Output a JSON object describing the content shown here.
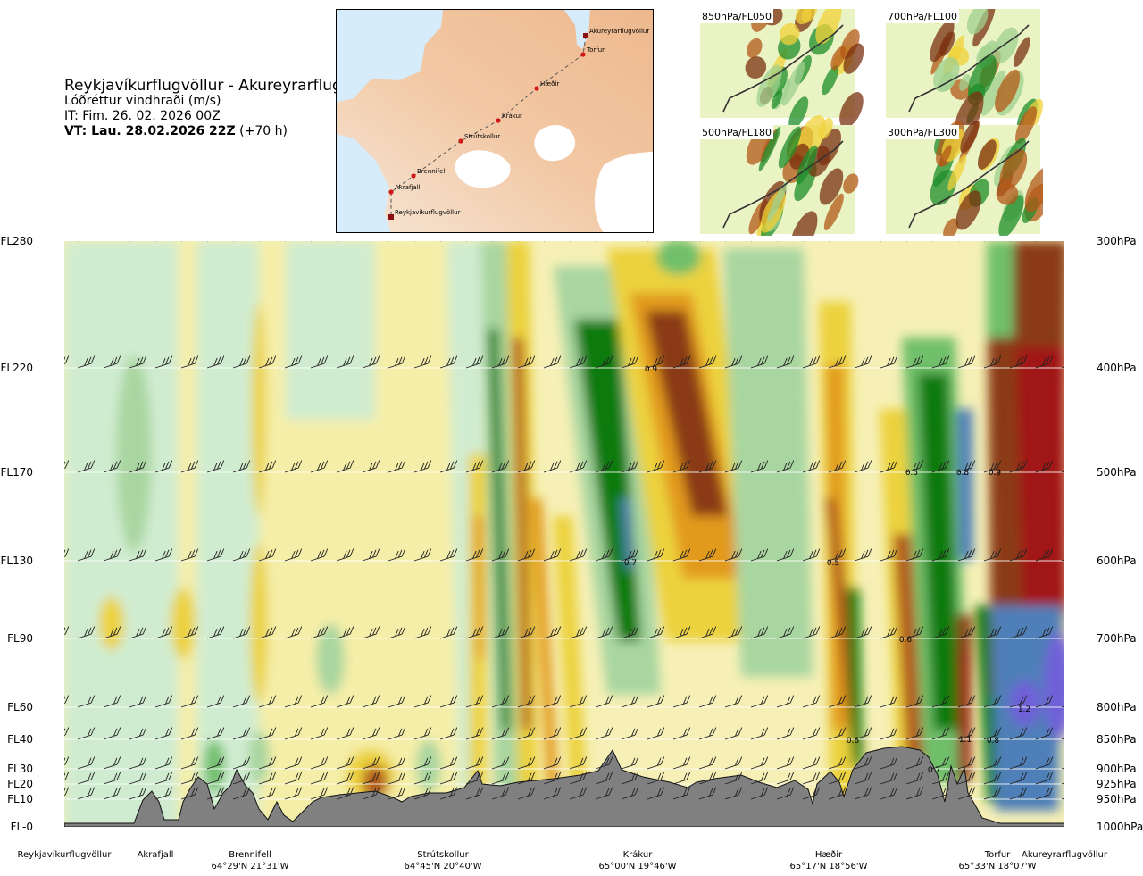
{
  "header": {
    "route_title": "Reykjavíkurflugvöllur - Akureyrarflugvöllur",
    "variable": "Lóðréttur vindhraði (m/s)",
    "init_time": "IT: Fim. 26. 02. 2026 00Z",
    "valid_prefix": "VT: Lau. 28.02.2026 22Z",
    "valid_offset": "(+70 h)"
  },
  "map": {
    "route_points": [
      "Akureyrarflugvöllur",
      "Torfur",
      "Hæðir",
      "Krákur",
      "Strútskollur",
      "Brennifell",
      "Akrafjall",
      "Reykjavíkurflugvöllur"
    ]
  },
  "thumbnails": [
    {
      "label": "850hPa/FL050"
    },
    {
      "label": "700hPa/FL100"
    },
    {
      "label": "500hPa/FL180"
    },
    {
      "label": "300hPa/FL300"
    }
  ],
  "chart_data": {
    "type": "heatmap",
    "title": "Lóðréttur vindhraði (m/s)",
    "xlabel": "",
    "ylabel": "",
    "left_axis_labels": [
      "FL280",
      "FL220",
      "FL170",
      "FL130",
      "FL90",
      "FL60",
      "FL40",
      "FL30",
      "FL20",
      "FL10",
      "FL-0"
    ],
    "right_axis_labels": [
      "300hPa",
      "400hPa",
      "500hPa",
      "600hPa",
      "700hPa",
      "800hPa",
      "850hPa",
      "900hPa",
      "925hPa",
      "950hPa",
      "1000hPa"
    ],
    "pressure_levels_hpa": [
      300,
      400,
      500,
      600,
      700,
      800,
      850,
      900,
      925,
      950,
      1000
    ],
    "x_waypoints": [
      {
        "name": "Reykjavíkurflugvöllur",
        "coord": ""
      },
      {
        "name": "Akrafjall",
        "coord": ""
      },
      {
        "name": "Brennifell",
        "coord": "64°29'N 21°31'W"
      },
      {
        "name": "Strútskollur",
        "coord": "64°45'N 20°40'W"
      },
      {
        "name": "Krákur",
        "coord": "65°00'N 19°46'W"
      },
      {
        "name": "Hæðir",
        "coord": "65°17'N 18°56'W"
      },
      {
        "name": "Torfur",
        "coord": "65°33'N 18°07'W"
      },
      {
        "name": "Akureyrarflugvöllur",
        "coord": ""
      }
    ],
    "contour_labels": [
      "0.9",
      "0.7",
      "0.5",
      "0.5",
      "0.8",
      "0.9",
      "0.6",
      "0.6",
      "1.1",
      "0.8",
      "0.7",
      "1.2"
    ],
    "colors": {
      "strong_down_blue": "#4f7fb8",
      "down_violet": "#7060d8",
      "down_dark_green": "#0a7a10",
      "down_green": "#6fbf6a",
      "down_light_green": "#a9d6a0",
      "down_pale_green": "#d0ecd0",
      "near_zero": "#f4fbec",
      "up_pale_yellow": "#f5eea8",
      "up_yellow": "#ecd23c",
      "up_orange": "#e29a1c",
      "up_brown": "#b0581a",
      "up_dark_brown": "#8a3a14",
      "up_red": "#a11818",
      "terrain": "#808080"
    }
  }
}
